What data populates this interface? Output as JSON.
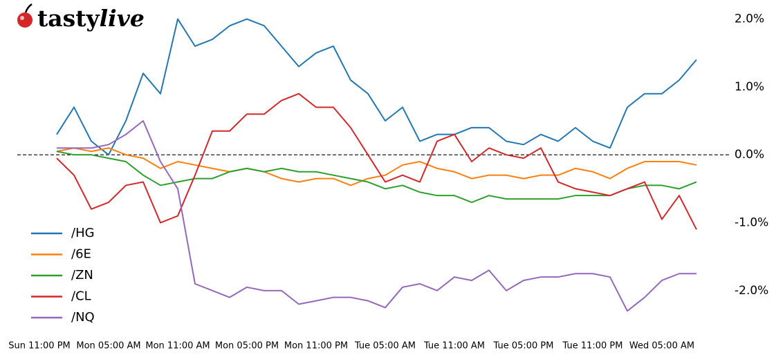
{
  "brand": [
    "tasty",
    "live"
  ],
  "chart_data": {
    "type": "line",
    "categories": [
      "Sun 11:00 PM",
      null,
      null,
      null,
      "Mon 05:00 AM",
      null,
      null,
      null,
      "Mon 11:00 AM",
      null,
      null,
      null,
      "Mon 05:00 PM",
      null,
      null,
      null,
      "Mon 11:00 PM",
      null,
      null,
      null,
      "Tue 05:00 AM",
      null,
      null,
      null,
      "Tue 11:00 AM",
      null,
      null,
      null,
      "Tue 05:00 PM",
      null,
      null,
      null,
      "Tue 11:00 PM",
      null,
      null,
      null,
      "Wed 05:00 AM",
      null,
      null
    ],
    "series": [
      {
        "name": "/HG",
        "color": "#1f77b4",
        "values": [
          null,
          0.3,
          0.7,
          0.2,
          0.0,
          0.5,
          1.2,
          0.9,
          2.0,
          1.6,
          1.7,
          1.9,
          2.0,
          1.9,
          1.6,
          1.3,
          1.5,
          1.6,
          1.1,
          0.9,
          0.5,
          0.7,
          0.2,
          0.3,
          0.3,
          0.4,
          0.4,
          0.2,
          0.15,
          0.3,
          0.2,
          0.4,
          0.2,
          0.1,
          0.7,
          0.9,
          0.9,
          1.1,
          1.4
        ]
      },
      {
        "name": "/6E",
        "color": "#ff7f0e",
        "values": [
          null,
          0.05,
          0.1,
          0.05,
          0.1,
          0.0,
          -0.05,
          -0.2,
          -0.1,
          -0.15,
          -0.2,
          -0.25,
          -0.2,
          -0.25,
          -0.35,
          -0.4,
          -0.35,
          -0.35,
          -0.45,
          -0.35,
          -0.3,
          -0.15,
          -0.1,
          -0.2,
          -0.25,
          -0.35,
          -0.3,
          -0.3,
          -0.35,
          -0.3,
          -0.3,
          -0.2,
          -0.25,
          -0.35,
          -0.2,
          -0.1,
          -0.1,
          -0.1,
          -0.15
        ]
      },
      {
        "name": "/ZN",
        "color": "#2ca02c",
        "values": [
          null,
          0.05,
          0.0,
          0.0,
          -0.05,
          -0.1,
          -0.3,
          -0.45,
          -0.4,
          -0.35,
          -0.35,
          -0.25,
          -0.2,
          -0.25,
          -0.2,
          -0.25,
          -0.25,
          -0.3,
          -0.35,
          -0.4,
          -0.5,
          -0.45,
          -0.55,
          -0.6,
          -0.6,
          -0.7,
          -0.6,
          -0.65,
          -0.65,
          -0.65,
          -0.65,
          -0.6,
          -0.6,
          -0.6,
          -0.5,
          -0.45,
          -0.45,
          -0.5,
          -0.4
        ]
      },
      {
        "name": "/CL",
        "color": "#d62728",
        "values": [
          null,
          -0.05,
          -0.3,
          -0.8,
          -0.7,
          -0.45,
          -0.4,
          -1.0,
          -0.9,
          -0.3,
          0.35,
          0.35,
          0.6,
          0.6,
          0.8,
          0.9,
          0.7,
          0.7,
          0.4,
          0.0,
          -0.4,
          -0.3,
          -0.4,
          0.2,
          0.3,
          -0.1,
          0.1,
          0.0,
          -0.05,
          0.1,
          -0.4,
          -0.5,
          -0.55,
          -0.6,
          -0.5,
          -0.4,
          -0.95,
          -0.6,
          -1.1
        ]
      },
      {
        "name": "/NQ",
        "color": "#9467bd",
        "values": [
          null,
          0.1,
          0.1,
          0.1,
          0.15,
          0.3,
          0.5,
          -0.1,
          -0.5,
          -1.9,
          -2.0,
          -2.1,
          -1.95,
          -2.0,
          -2.0,
          -2.2,
          -2.15,
          -2.1,
          -2.1,
          -2.15,
          -2.25,
          -1.95,
          -1.9,
          -2.0,
          -1.8,
          -1.85,
          -1.7,
          -2.0,
          -1.85,
          -1.8,
          -1.8,
          -1.75,
          -1.75,
          -1.8,
          -2.3,
          -2.1,
          -1.85,
          -1.75,
          -1.75
        ]
      }
    ],
    "ylim": [
      -2.5,
      2.28
    ],
    "yticks": [
      {
        "value": 2,
        "label": "2.0%"
      },
      {
        "value": 1,
        "label": "1.0%"
      },
      {
        "value": 0,
        "label": "0.0%"
      },
      {
        "value": -1,
        "label": "-1.0%"
      },
      {
        "value": -2,
        "label": "-2.0%"
      }
    ],
    "hline": 0,
    "legend": "lower-left"
  }
}
